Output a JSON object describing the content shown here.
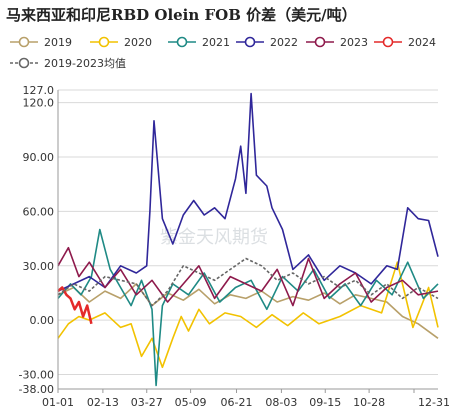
{
  "chart_data": {
    "type": "line",
    "title": "马来西亚和印尼RBD Olein FOB 价差（美元/吨）",
    "xlabel": "",
    "ylabel": "",
    "ylim": [
      -38,
      127
    ],
    "y_ticks": [
      -38.0,
      -30.0,
      0.0,
      30.0,
      60.0,
      90.0,
      120.0,
      127.0
    ],
    "y_tick_labels": [
      "-38.00",
      "-30.00",
      "0.00",
      "30.00",
      "60.00",
      "90.00",
      "120.0",
      "127.0"
    ],
    "y_tick_red": [
      false,
      false,
      true,
      false,
      false,
      true,
      false,
      false
    ],
    "x_ticks": [
      0,
      43,
      85,
      127,
      171,
      214,
      256,
      298,
      341
    ],
    "x_tick_labels": [
      "01-01",
      "02-13",
      "03-27",
      "05-09",
      "06-21",
      "08-03",
      "09-15",
      "10-28",
      "12-31"
    ],
    "xlim": [
      0,
      364
    ],
    "grid": true,
    "legend_position": "top",
    "watermark": "紫金天风期货",
    "series": [
      {
        "name": "2019",
        "color": "#b8a06a",
        "dash": "",
        "x": [
          0,
          15,
          30,
          45,
          60,
          75,
          90,
          105,
          120,
          135,
          150,
          165,
          180,
          195,
          210,
          225,
          240,
          255,
          270,
          285,
          300,
          315,
          330,
          345,
          364
        ],
        "values": [
          14,
          18,
          10,
          16,
          12,
          20,
          8,
          15,
          11,
          17,
          9,
          14,
          12,
          16,
          10,
          13,
          11,
          15,
          9,
          14,
          12,
          10,
          2,
          -2,
          -10
        ]
      },
      {
        "name": "2020",
        "color": "#f2c200",
        "dash": "",
        "x": [
          0,
          10,
          20,
          30,
          45,
          60,
          70,
          80,
          90,
          100,
          110,
          118,
          125,
          135,
          145,
          160,
          175,
          190,
          205,
          220,
          235,
          250,
          270,
          290,
          310,
          325,
          340,
          355,
          364
        ],
        "values": [
          -10,
          -2,
          2,
          0,
          4,
          -4,
          -2,
          -20,
          -10,
          -26,
          -10,
          2,
          -6,
          6,
          -2,
          4,
          2,
          -4,
          3,
          -3,
          4,
          -2,
          2,
          8,
          4,
          32,
          -4,
          18,
          -4
        ]
      },
      {
        "name": "2021",
        "color": "#1f8a85",
        "dash": "",
        "x": [
          0,
          12,
          22,
          32,
          40,
          50,
          60,
          70,
          80,
          90,
          94,
          96,
          100,
          110,
          125,
          140,
          155,
          170,
          185,
          200,
          215,
          230,
          245,
          260,
          275,
          290,
          305,
          320,
          335,
          350,
          364
        ],
        "values": [
          12,
          20,
          14,
          24,
          50,
          28,
          18,
          8,
          22,
          6,
          -36,
          -20,
          8,
          20,
          14,
          26,
          10,
          18,
          22,
          6,
          24,
          16,
          28,
          12,
          20,
          8,
          22,
          14,
          32,
          12,
          20
        ]
      },
      {
        "name": "2022",
        "color": "#30279a",
        "dash": "",
        "x": [
          0,
          15,
          30,
          45,
          60,
          75,
          85,
          88,
          92,
          100,
          110,
          120,
          130,
          140,
          150,
          160,
          170,
          175,
          180,
          185,
          190,
          200,
          205,
          215,
          225,
          240,
          255,
          270,
          285,
          300,
          315,
          325,
          335,
          345,
          355,
          364
        ],
        "values": [
          16,
          20,
          24,
          18,
          30,
          26,
          30,
          60,
          110,
          56,
          42,
          58,
          66,
          58,
          62,
          56,
          78,
          96,
          70,
          125,
          80,
          74,
          62,
          50,
          28,
          36,
          22,
          30,
          26,
          20,
          30,
          28,
          62,
          56,
          55,
          35
        ]
      },
      {
        "name": "2023",
        "color": "#8e1a4c",
        "dash": "",
        "x": [
          0,
          10,
          20,
          30,
          45,
          60,
          75,
          90,
          105,
          120,
          135,
          150,
          165,
          180,
          195,
          210,
          225,
          240,
          255,
          270,
          285,
          300,
          315,
          330,
          345,
          364
        ],
        "values": [
          30,
          40,
          24,
          32,
          18,
          28,
          14,
          22,
          10,
          20,
          30,
          12,
          24,
          20,
          16,
          28,
          8,
          34,
          12,
          20,
          26,
          10,
          18,
          22,
          14,
          16
        ]
      },
      {
        "name": "2024",
        "color": "#e42a2a",
        "dash": "",
        "x": [
          0,
          4,
          8,
          12,
          16,
          20,
          24,
          28,
          32
        ],
        "values": [
          16,
          18,
          14,
          12,
          6,
          10,
          2,
          8,
          -2
        ]
      },
      {
        "name": "2019-2023均值",
        "color": "#666666",
        "dash": "3,2",
        "x": [
          0,
          15,
          30,
          45,
          60,
          75,
          90,
          105,
          120,
          135,
          150,
          165,
          180,
          195,
          210,
          225,
          240,
          255,
          270,
          285,
          300,
          315,
          330,
          345,
          364
        ],
        "values": [
          14,
          20,
          16,
          24,
          22,
          20,
          8,
          16,
          30,
          26,
          22,
          28,
          34,
          30,
          22,
          26,
          20,
          24,
          18,
          22,
          14,
          20,
          12,
          18,
          12
        ]
      }
    ]
  }
}
